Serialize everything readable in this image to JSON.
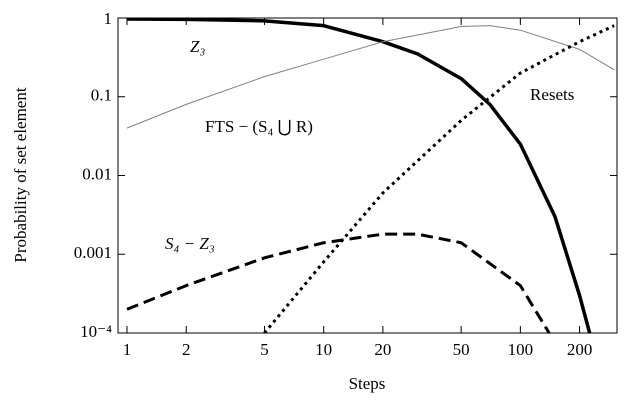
{
  "chart_data": {
    "type": "line",
    "xlabel": "Steps",
    "ylabel": "Probability of set element",
    "xscale": "log",
    "yscale": "log",
    "xlim": [
      0.9,
      310
    ],
    "ylim": [
      0.0001,
      1
    ],
    "xticks": [
      1,
      2,
      5,
      10,
      20,
      50,
      100,
      200
    ],
    "yticks": [
      {
        "value": 0.0001,
        "label": "10⁻⁴"
      },
      0.001,
      0.01,
      0.1,
      1
    ],
    "series": [
      {
        "name": "Z₃",
        "color": "#000000",
        "style": "solid",
        "linewidth": 3.5,
        "x": [
          1,
          2,
          5,
          10,
          20,
          30,
          50,
          70,
          100,
          150,
          200,
          225
        ],
        "values": [
          0.97,
          0.96,
          0.92,
          0.8,
          0.5,
          0.35,
          0.17,
          0.08,
          0.025,
          0.003,
          0.0003,
          0.0001
        ]
      },
      {
        "name": "FTS − (S₄ ⋃ R)",
        "color": "#808080",
        "style": "solid",
        "linewidth": 1,
        "x": [
          1,
          2,
          5,
          10,
          20,
          50,
          70,
          100,
          200,
          300
        ],
        "values": [
          0.04,
          0.08,
          0.18,
          0.3,
          0.5,
          0.78,
          0.8,
          0.7,
          0.4,
          0.22
        ]
      },
      {
        "name": "Resets",
        "color": "#000000",
        "style": "dotted",
        "linewidth": 3,
        "x": [
          5,
          10,
          20,
          50,
          100,
          200,
          300
        ],
        "values": [
          0.0001,
          0.0008,
          0.006,
          0.05,
          0.2,
          0.5,
          0.8
        ]
      },
      {
        "name": "S₄ − Z₃",
        "color": "#000000",
        "style": "dashed",
        "linewidth": 3,
        "x": [
          1,
          2,
          5,
          10,
          20,
          30,
          50,
          100,
          140
        ],
        "values": [
          0.0002,
          0.0004,
          0.0009,
          0.0014,
          0.0018,
          0.0018,
          0.0014,
          0.0004,
          0.0001
        ]
      }
    ]
  }
}
